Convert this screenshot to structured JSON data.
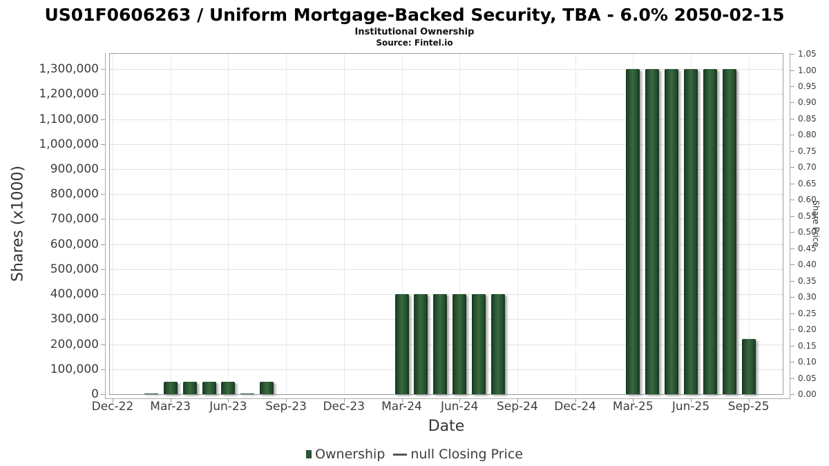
{
  "title": "US01F0606263 / Uniform Mortgage-Backed Security, TBA - 6.0% 2050-02-15",
  "subtitle": "Institutional Ownership",
  "source": "Source: Fintel.io",
  "chart_data": {
    "type": "bar",
    "title": "US01F0606263 / Uniform Mortgage-Backed Security, TBA - 6.0% 2050-02-15",
    "subtitle": "Institutional Ownership",
    "source": "Source: Fintel.io",
    "xlabel": "Date",
    "ylabel_left": "Shares (x1000)",
    "ylabel_right": "Share Price",
    "grid": true,
    "legend_position": "bottom",
    "x_tick_labels": [
      "Dec-22",
      "Mar-23",
      "Jun-23",
      "Sep-23",
      "Dec-23",
      "Mar-24",
      "Jun-24",
      "Sep-24",
      "Dec-24",
      "Mar-25",
      "Jun-25",
      "Sep-25"
    ],
    "left_tick_values": [
      0,
      100000,
      200000,
      300000,
      400000,
      500000,
      600000,
      700000,
      800000,
      900000,
      1000000,
      1100000,
      1200000,
      1300000
    ],
    "right_tick_values": [
      0.0,
      0.05,
      0.1,
      0.15,
      0.2,
      0.25,
      0.3,
      0.35,
      0.4,
      0.45,
      0.5,
      0.55,
      0.6,
      0.65,
      0.7,
      0.75,
      0.8,
      0.85,
      0.9,
      0.95,
      1.0,
      1.05
    ],
    "left_ylim": [
      0,
      1360700
    ],
    "right_ylim": [
      0,
      1.05
    ],
    "series": [
      {
        "name": "Ownership",
        "type": "bar",
        "color": "#2b5434",
        "points": [
          {
            "month": "Feb-23",
            "value": 2000
          },
          {
            "month": "Mar-23",
            "value": 50000
          },
          {
            "month": "Apr-23",
            "value": 50000
          },
          {
            "month": "May-23",
            "value": 50000
          },
          {
            "month": "Jun-23",
            "value": 50000
          },
          {
            "month": "Jul-23",
            "value": 2000
          },
          {
            "month": "Aug-23",
            "value": 50000
          },
          {
            "month": "Mar-24",
            "value": 400000
          },
          {
            "month": "Apr-24",
            "value": 400000
          },
          {
            "month": "May-24",
            "value": 400000
          },
          {
            "month": "Jun-24",
            "value": 400000
          },
          {
            "month": "Jul-24",
            "value": 400000
          },
          {
            "month": "Aug-24",
            "value": 400000
          },
          {
            "month": "Mar-25",
            "value": 1300000
          },
          {
            "month": "Apr-25",
            "value": 1300000
          },
          {
            "month": "May-25",
            "value": 1300000
          },
          {
            "month": "Jun-25",
            "value": 1300000
          },
          {
            "month": "Jul-25",
            "value": 1300000
          },
          {
            "month": "Aug-25",
            "value": 1300000
          },
          {
            "month": "Sep-25",
            "value": 220000
          }
        ]
      },
      {
        "name": "null Closing Price",
        "type": "line",
        "color": "#555555",
        "points": []
      }
    ],
    "legend": [
      {
        "label": "Ownership",
        "swatch": "square",
        "color": "#2b5434"
      },
      {
        "label": "null Closing Price",
        "swatch": "line",
        "color": "#555555"
      }
    ],
    "colors": {
      "bar": "#2b5434",
      "grid": "#e3e3e3",
      "axis": "#9a9a9a",
      "text": "#3d3d3d"
    }
  }
}
